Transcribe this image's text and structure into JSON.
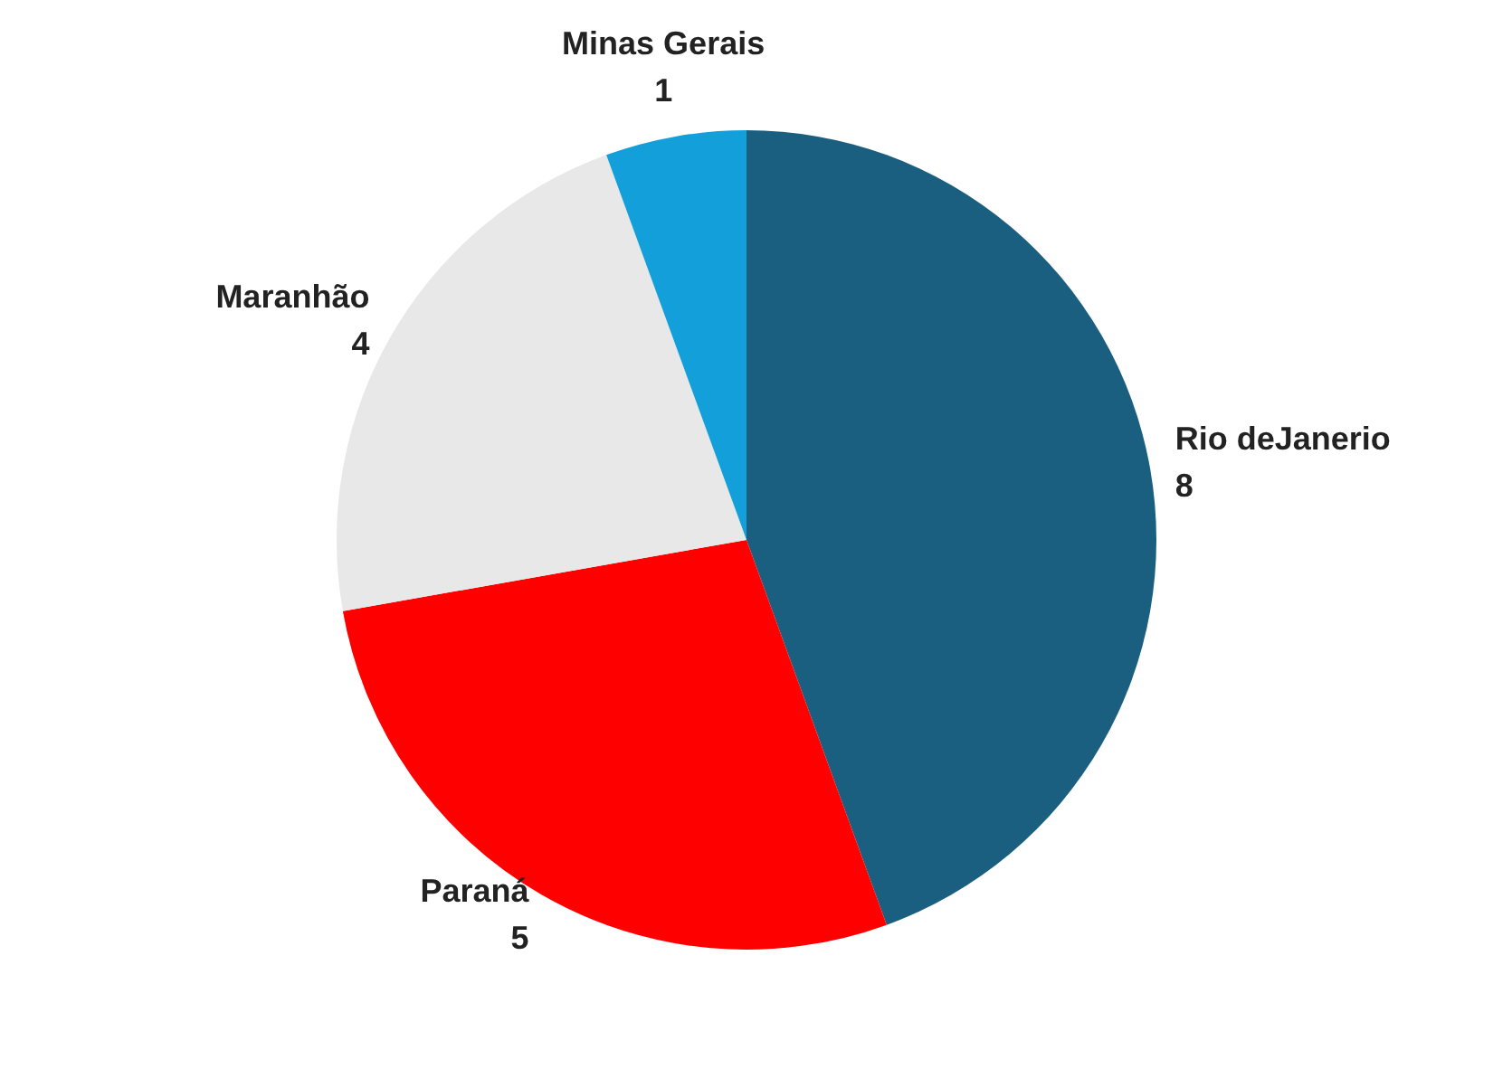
{
  "chart_data": {
    "type": "pie",
    "categories": [
      "Rio deJanerio",
      "Paraná",
      "Maranhão",
      "Minas Gerais"
    ],
    "values": [
      8,
      5,
      4,
      1
    ],
    "colors": [
      "#1a5e80",
      "#ff0000",
      "#e8e8e8",
      "#139fd9"
    ],
    "data_labels": true,
    "legend": false
  }
}
